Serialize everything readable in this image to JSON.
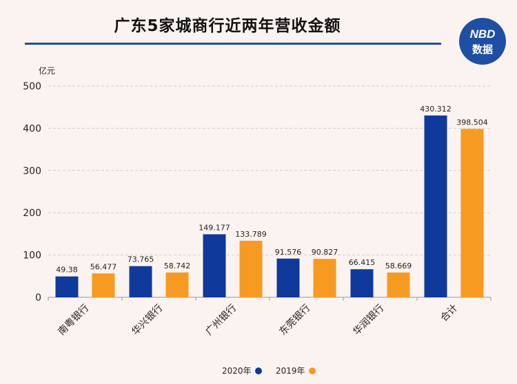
{
  "title": "广东5家城商行近两年营收金额",
  "logo": {
    "line1": "NBD",
    "line2": "数据"
  },
  "colors": {
    "title_rule": "#1f4e9c",
    "logo_bg": "#1f4fa3"
  },
  "chart_data": {
    "type": "bar",
    "title": "广东5家城商行近两年营收金额",
    "ylabel": "亿元",
    "xlabel": "",
    "ylim": [
      0,
      500
    ],
    "yticks": [
      0,
      100,
      200,
      300,
      400,
      500
    ],
    "grid": true,
    "legend_position": "bottom",
    "categories": [
      "南粤银行",
      "华兴银行",
      "广州银行",
      "东莞银行",
      "华润银行",
      "合计"
    ],
    "series": [
      {
        "name": "2020年",
        "color": "#0f3a9c",
        "values": [
          49.38,
          73.765,
          149.177,
          91.576,
          66.415,
          430.312
        ],
        "labels": [
          "49.38",
          "73.765",
          "149.177",
          "91.576",
          "66.415",
          "430.312"
        ]
      },
      {
        "name": "2019年",
        "color": "#f79a22",
        "values": [
          56.477,
          58.742,
          133.789,
          90.827,
          58.669,
          398.504
        ],
        "labels": [
          "56.477",
          "58.742",
          "133.789",
          "90.827",
          "58.669",
          "398.504"
        ]
      }
    ]
  }
}
